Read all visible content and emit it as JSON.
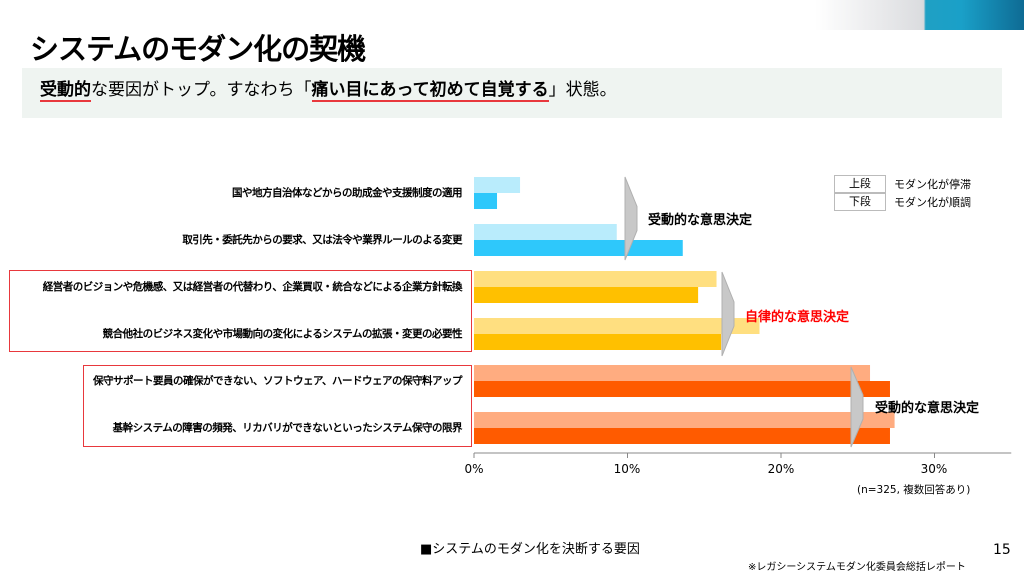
{
  "header": {
    "title": "システムのモダン化の契機"
  },
  "subtitle": {
    "part1": "受動的",
    "part2": "な要因がトップ。すなわち「",
    "part3": "痛い目にあって初めて自覚する",
    "part4": "」状態。"
  },
  "chart_data": {
    "type": "bar",
    "orientation": "horizontal",
    "categories": [
      "国や地方自治体などからの助成金や支援制度の適用",
      "取引先・委託先からの要求、又は法令や業界ルールのよる変更",
      "経営者のビジョンや危機感、又は経営者の代替わり、企業買収・統合などによる企業方針転換",
      "競合他社のビジネス変化や市場動向の変化によるシステムの拡張・変更の必要性",
      "保守サポート要員の確保ができない、ソフトウェア、ハードウェアの保守料アップ",
      "基幹システムの障害の頻発、リカバリができないといったシステム保守の限界"
    ],
    "series": [
      {
        "name": "モダン化が停滞",
        "key": "上段",
        "values": [
          3.0,
          9.3,
          15.8,
          18.6,
          25.8,
          27.4
        ],
        "colors": [
          "#b9ecfc",
          "#b9ecfc",
          "#ffdf80",
          "#ffdf80",
          "#ffac80",
          "#ffac80"
        ]
      },
      {
        "name": "モダン化が順調",
        "key": "下段",
        "values": [
          1.5,
          13.6,
          14.6,
          16.1,
          27.1,
          27.1
        ],
        "colors": [
          "#2ec8fb",
          "#2ec8fb",
          "#ffc000",
          "#ffc000",
          "#ff5b00",
          "#ff5b00"
        ]
      }
    ],
    "xlim": [
      0,
      35
    ],
    "xticks": [
      "0%",
      "10%",
      "20%",
      "30%"
    ],
    "xtick_values": [
      0,
      10,
      20,
      30
    ],
    "note": "(n=325, 複数回答あり)",
    "caption": "■システムのモダン化を決断する要因",
    "annotations": [
      {
        "text": "受動的な意思決定",
        "color": "#000000"
      },
      {
        "text": "自律的な意思決定",
        "color": "#ff0000"
      },
      {
        "text": "受動的な意思決定",
        "color": "#000000"
      }
    ],
    "grid": false,
    "legend_position": "top-right"
  },
  "footer": {
    "page": "15",
    "source": "※レガシーシステムモダン化委員会総括レポート"
  }
}
